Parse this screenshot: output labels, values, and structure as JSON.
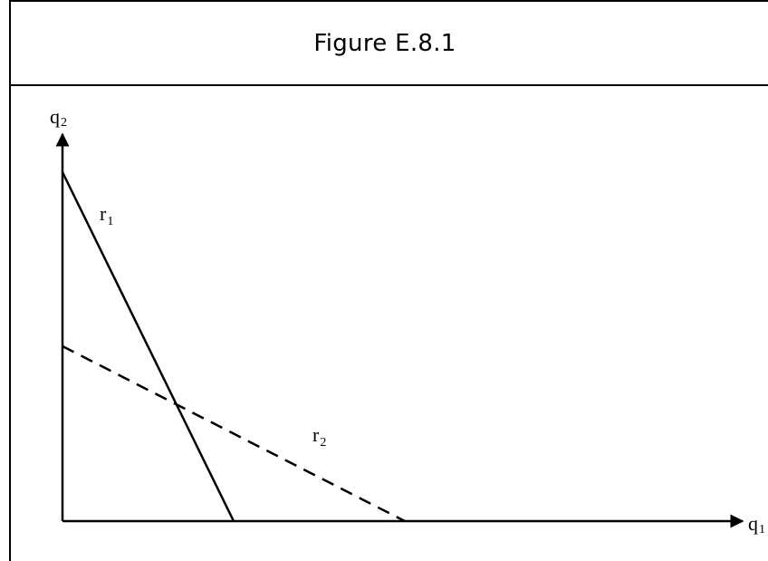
{
  "figure": {
    "title": "Figure E.8.1"
  },
  "axes": {
    "y_label": {
      "base": "q",
      "sub": "2"
    },
    "x_label": {
      "base": "q",
      "sub": "1"
    }
  },
  "curves": [
    {
      "label_base": "r",
      "label_sub": "1",
      "style": "solid"
    },
    {
      "label_base": "r",
      "label_sub": "2",
      "style": "dashed"
    }
  ],
  "colors": {
    "line": "#000000",
    "background": "#ffffff"
  }
}
